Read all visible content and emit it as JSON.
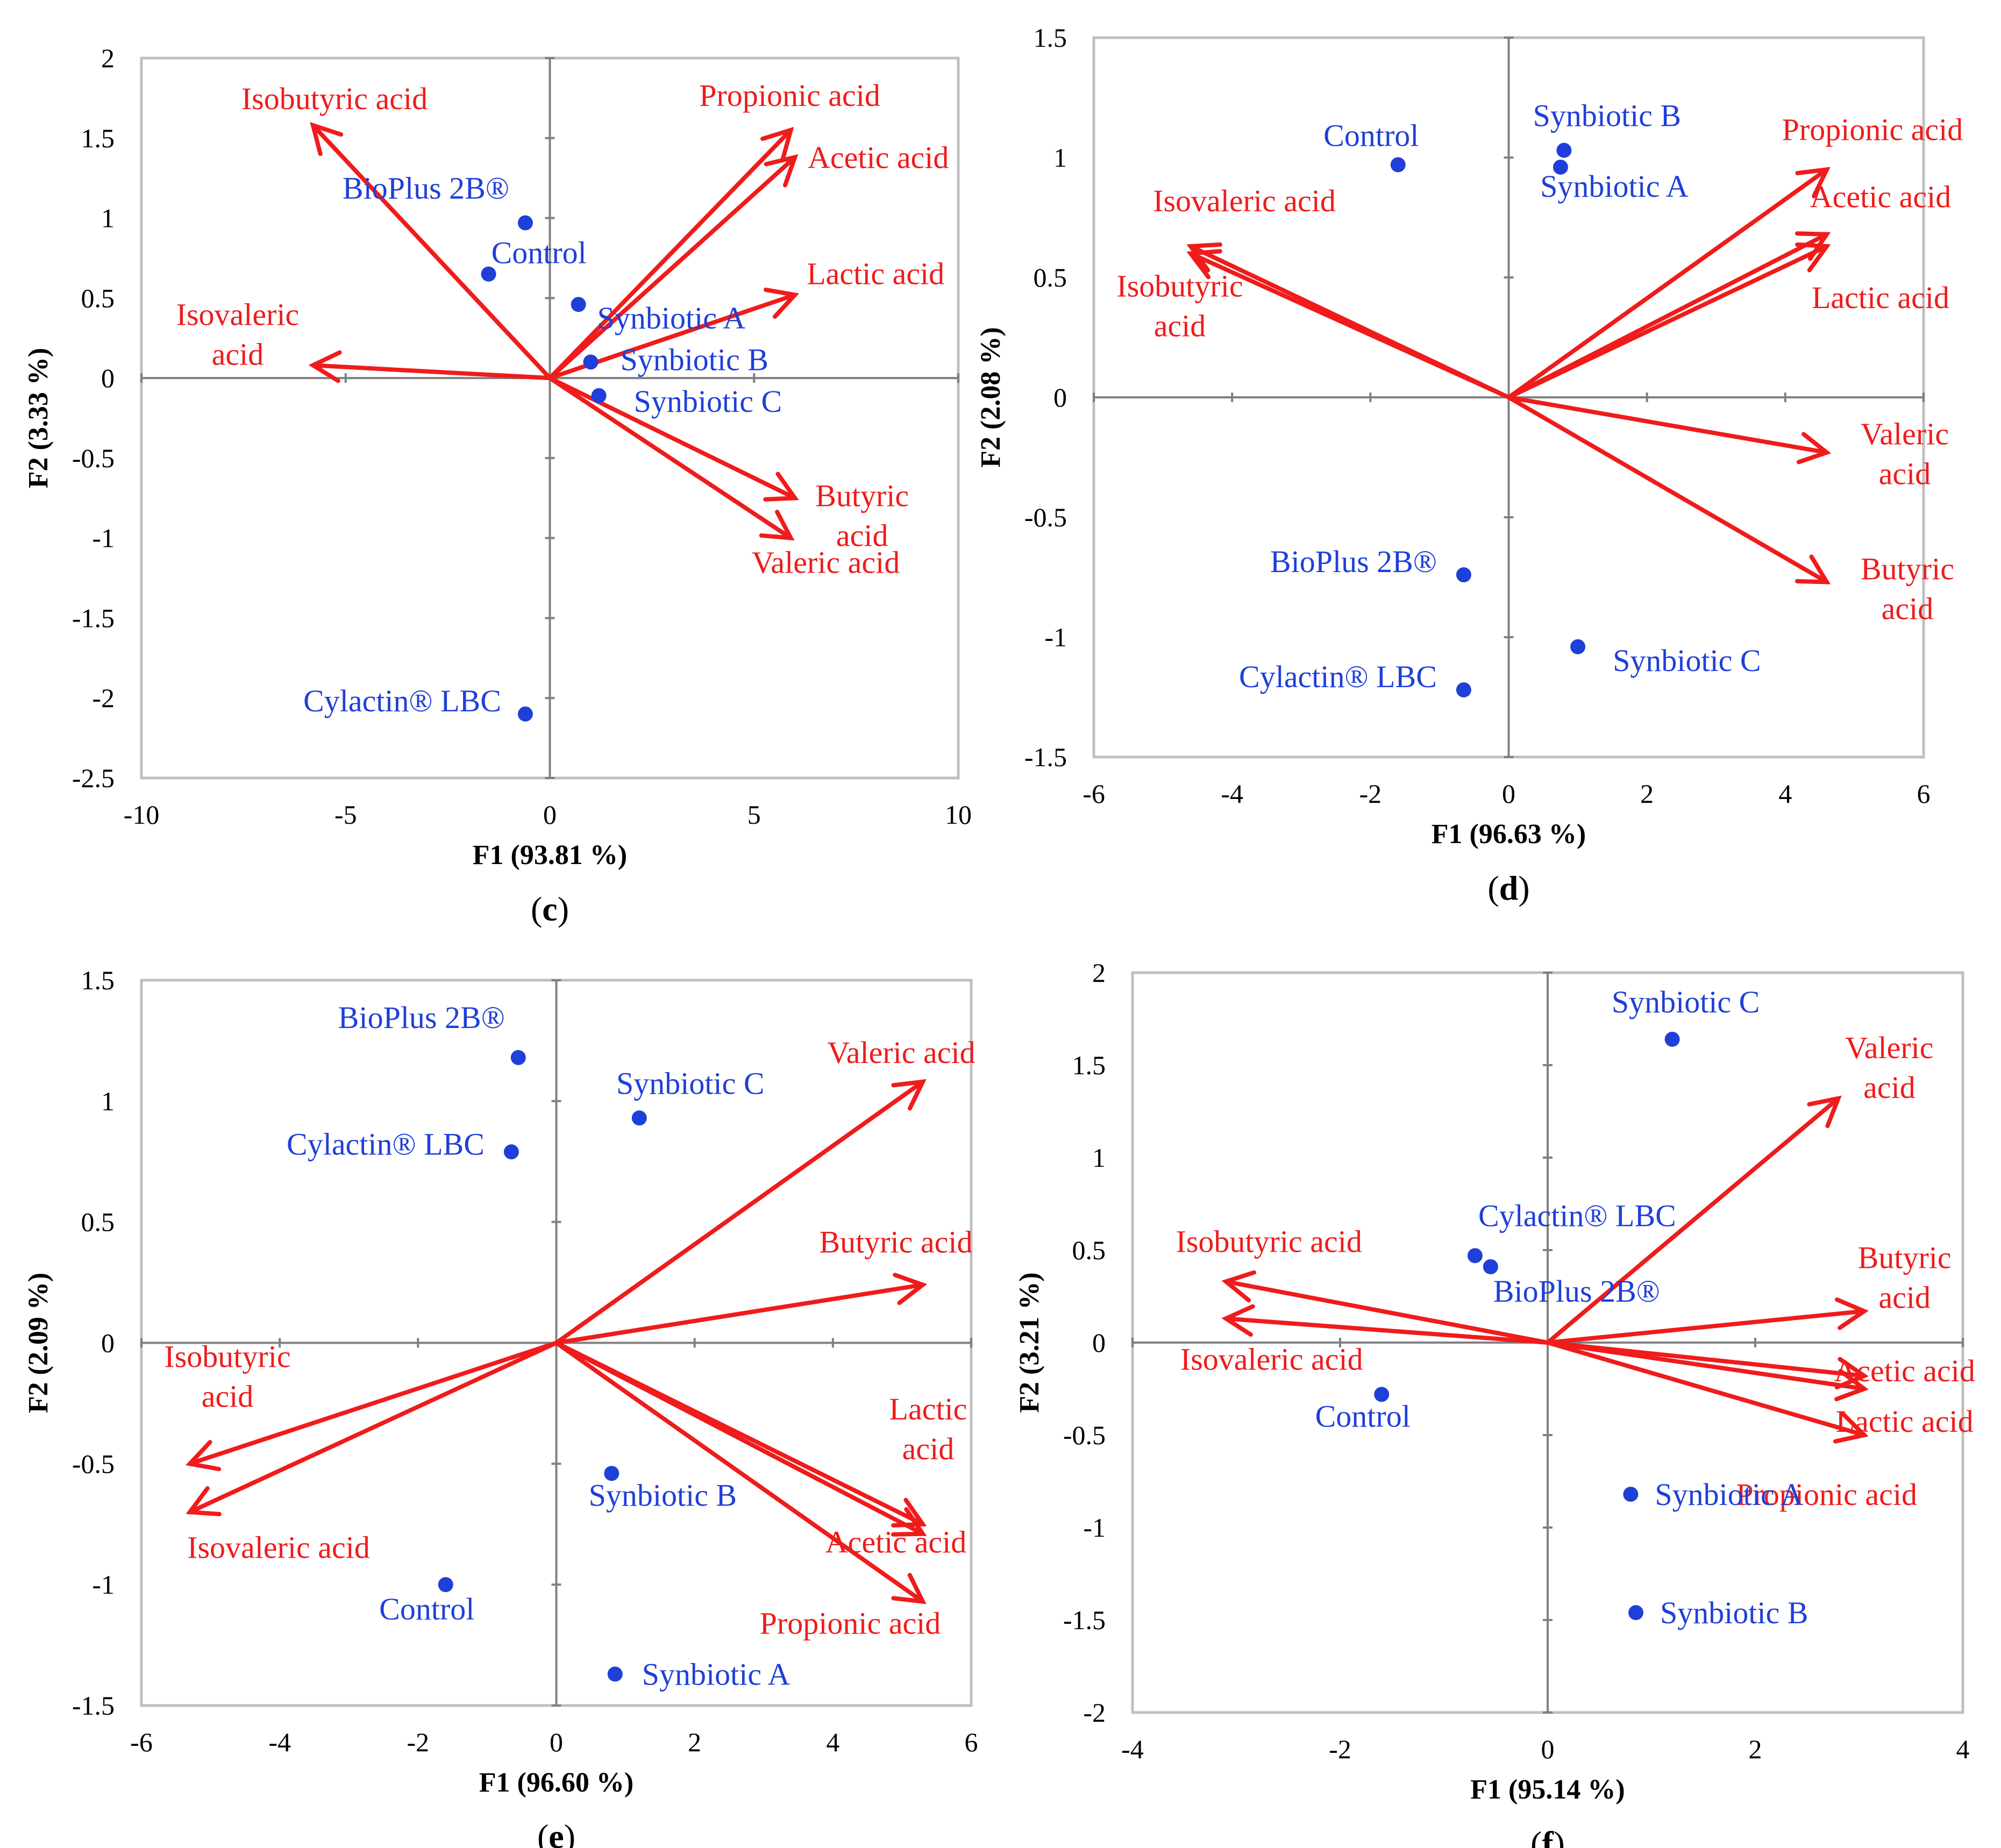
{
  "colors": {
    "vector": "#F01B1B",
    "observation": "#1F3FD9",
    "frame": "#BFBFBF",
    "axis": "#808080"
  },
  "chart_data": [
    {
      "type": "scatter",
      "chart_kind": "PCA biplot",
      "panel_label": "c",
      "xlabel": "F1 (93.81 %)",
      "ylabel": "F2 (3.33 %)",
      "xlim": [
        -10,
        10
      ],
      "ylim": [
        -2.5,
        2
      ],
      "xticks": [
        -10,
        -5,
        0,
        5,
        10
      ],
      "yticks": [
        -2.5,
        -2,
        -1.5,
        -1,
        -0.5,
        0,
        0.5,
        1,
        1.5,
        2
      ],
      "observations": [
        {
          "name": "BioPlus 2B®",
          "x": -0.6,
          "y": 0.97
        },
        {
          "name": "Control",
          "x": -1.5,
          "y": 0.65
        },
        {
          "name": "Synbiotic A",
          "x": 0.7,
          "y": 0.46
        },
        {
          "name": "Synbiotic B",
          "x": 1.0,
          "y": 0.1
        },
        {
          "name": "Synbiotic C",
          "x": 1.2,
          "y": -0.11
        },
        {
          "name": "Cylactin® LBC",
          "x": -0.6,
          "y": -2.1
        }
      ],
      "variables": [
        {
          "name": "Isobutyric acid",
          "x": -5.8,
          "y": 1.58
        },
        {
          "name": "Propionic acid",
          "x": 5.9,
          "y": 1.55
        },
        {
          "name": "Acetic acid",
          "x": 6.0,
          "y": 1.38
        },
        {
          "name": "Lactic acid",
          "x": 6.0,
          "y": 0.52
        },
        {
          "name": "Isovaleric acid",
          "x": -5.8,
          "y": 0.08
        },
        {
          "name": "Butyric acid",
          "x": 6.0,
          "y": -0.75
        },
        {
          "name": "Valeric acid",
          "x": 5.9,
          "y": -1.0
        }
      ]
    },
    {
      "type": "scatter",
      "chart_kind": "PCA biplot",
      "panel_label": "d",
      "xlabel": "F1 (96.63 %)",
      "ylabel": "F2 (2.08 %)",
      "xlim": [
        -6,
        6
      ],
      "ylim": [
        -1.5,
        1.5
      ],
      "xticks": [
        -6,
        -4,
        -2,
        0,
        2,
        4,
        6
      ],
      "yticks": [
        -1.5,
        -1,
        -0.5,
        0,
        0.5,
        1,
        1.5
      ],
      "observations": [
        {
          "name": "Control",
          "x": -1.6,
          "y": 0.97
        },
        {
          "name": "Synbiotic B",
          "x": 0.8,
          "y": 1.03
        },
        {
          "name": "Synbiotic A",
          "x": 0.75,
          "y": 0.96
        },
        {
          "name": "BioPlus 2B®",
          "x": -0.65,
          "y": -0.74
        },
        {
          "name": "Synbiotic C",
          "x": 1.0,
          "y": -1.04
        },
        {
          "name": "Cylactin® LBC",
          "x": -0.65,
          "y": -1.22
        }
      ],
      "variables": [
        {
          "name": "Propionic acid",
          "x": 4.6,
          "y": 0.95
        },
        {
          "name": "Acetic acid",
          "x": 4.6,
          "y": 0.68
        },
        {
          "name": "Lactic acid",
          "x": 4.6,
          "y": 0.63
        },
        {
          "name": "Isovaleric acid",
          "x": -4.6,
          "y": 0.63
        },
        {
          "name": "Isobutyric acid",
          "x": -4.6,
          "y": 0.6
        },
        {
          "name": "Valeric acid",
          "x": 4.6,
          "y": -0.23
        },
        {
          "name": "Butyric acid",
          "x": 4.6,
          "y": -0.77
        }
      ]
    },
    {
      "type": "scatter",
      "chart_kind": "PCA biplot",
      "panel_label": "e",
      "xlabel": "F1 (96.60 %)",
      "ylabel": "F2 (2.09 %)",
      "xlim": [
        -6,
        6
      ],
      "ylim": [
        -1.5,
        1.5
      ],
      "xticks": [
        -6,
        -4,
        -2,
        0,
        2,
        4,
        6
      ],
      "yticks": [
        -1.5,
        -1,
        -0.5,
        0,
        0.5,
        1,
        1.5
      ],
      "observations": [
        {
          "name": "BioPlus 2B®",
          "x": -0.55,
          "y": 1.18
        },
        {
          "name": "Cylactin® LBC",
          "x": -0.65,
          "y": 0.79
        },
        {
          "name": "Synbiotic C",
          "x": 1.2,
          "y": 0.93
        },
        {
          "name": "Synbiotic B",
          "x": 0.8,
          "y": -0.54
        },
        {
          "name": "Control",
          "x": -1.6,
          "y": -1.0
        },
        {
          "name": "Synbiotic A",
          "x": 0.85,
          "y": -1.37
        }
      ],
      "variables": [
        {
          "name": "Valeric acid",
          "x": 5.3,
          "y": 1.08
        },
        {
          "name": "Butyric acid",
          "x": 5.3,
          "y": 0.24
        },
        {
          "name": "Isobutyric acid",
          "x": -5.3,
          "y": -0.5
        },
        {
          "name": "Isovaleric acid",
          "x": -5.3,
          "y": -0.7
        },
        {
          "name": "Lactic acid",
          "x": 5.3,
          "y": -0.75
        },
        {
          "name": "Acetic acid",
          "x": 5.3,
          "y": -0.79
        },
        {
          "name": "Propionic acid",
          "x": 5.3,
          "y": -1.07
        }
      ]
    },
    {
      "type": "scatter",
      "chart_kind": "PCA biplot",
      "panel_label": "f",
      "xlabel": "F1 (95.14 %)",
      "ylabel": "F2 (3.21 %)",
      "xlim": [
        -4,
        4
      ],
      "ylim": [
        -2,
        2
      ],
      "xticks": [
        -4,
        -2,
        0,
        2,
        4
      ],
      "yticks": [
        -2,
        -1.5,
        -1,
        -0.5,
        0,
        0.5,
        1,
        1.5,
        2
      ],
      "observations": [
        {
          "name": "Synbiotic C",
          "x": 1.2,
          "y": 1.64
        },
        {
          "name": "Cylactin® LBC",
          "x": -0.7,
          "y": 0.47
        },
        {
          "name": "BioPlus 2B®",
          "x": -0.55,
          "y": 0.41
        },
        {
          "name": "Control",
          "x": -1.6,
          "y": -0.28
        },
        {
          "name": "Synbiotic A",
          "x": 0.8,
          "y": -0.82
        },
        {
          "name": "Synbiotic B",
          "x": 0.85,
          "y": -1.46
        }
      ],
      "variables": [
        {
          "name": "Valeric acid",
          "x": 2.8,
          "y": 1.32
        },
        {
          "name": "Isobutyric acid",
          "x": -3.1,
          "y": 0.33
        },
        {
          "name": "Isovaleric acid",
          "x": -3.1,
          "y": 0.13
        },
        {
          "name": "Butyric acid",
          "x": 3.05,
          "y": 0.17
        },
        {
          "name": "Acetic acid",
          "x": 3.05,
          "y": -0.18
        },
        {
          "name": "Lactic acid",
          "x": 3.05,
          "y": -0.25
        },
        {
          "name": "Propionic acid",
          "x": 3.05,
          "y": -0.5
        }
      ]
    }
  ]
}
